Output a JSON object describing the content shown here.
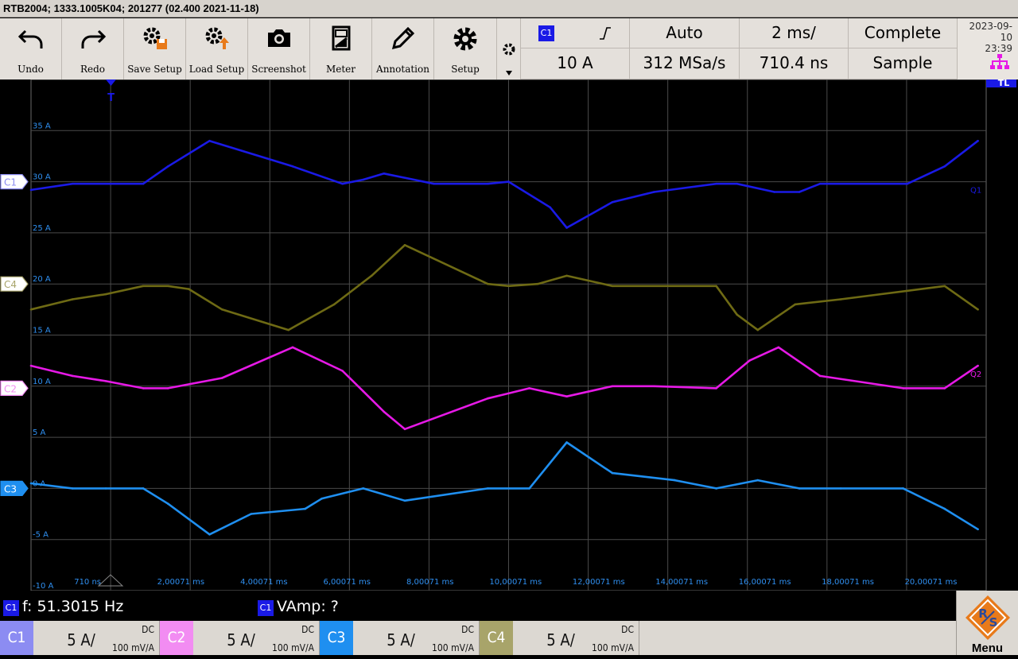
{
  "title": "RTB2004; 1333.1005K04; 201277 (02.400 2021-11-18)",
  "toolbar": {
    "undo": "Undo",
    "redo": "Redo",
    "save_setup": "Save Setup",
    "load_setup": "Load Setup",
    "screenshot": "Screenshot",
    "meter": "Meter",
    "annotation": "Annotation",
    "setup": "Setup"
  },
  "trigger": {
    "source": "C1",
    "level": "10 A",
    "mode": "Auto",
    "sample_rate": "312 MSa/s",
    "timebase": "2 ms/",
    "position": "710.4 ns",
    "acq_state": "Complete",
    "acq_mode": "Sample"
  },
  "datetime": {
    "date": "2023-09-10",
    "time": "23:39"
  },
  "trigger_marker": "T",
  "right_marker": "TL",
  "y_tick_labels": [
    "35 A",
    "30 A",
    "25 A",
    "20 A",
    "15 A",
    "10 A",
    "5 A",
    "0 A",
    "-5 A",
    "-10 A"
  ],
  "x_tick_labels": [
    "710 ns",
    "2,00071 ms",
    "4,00071 ms",
    "6,00071 ms",
    "8,00071 ms",
    "10,00071 ms",
    "12,00071 ms",
    "14,00071 ms",
    "16,00071 ms",
    "18,00071 ms",
    "20,00071 ms"
  ],
  "channels": [
    {
      "id": "C1",
      "label": "C1",
      "color": "#1a1ae6",
      "marker_color": "#8c8cf2",
      "scale": "5 A/",
      "coupling": "DC",
      "probe": "100 mV/A",
      "end_label": "Q1"
    },
    {
      "id": "C2",
      "label": "C2",
      "color": "#e619e6",
      "marker_color": "#f28cf2",
      "scale": "5 A/",
      "coupling": "DC",
      "probe": "100 mV/A",
      "end_label": "Q2"
    },
    {
      "id": "C3",
      "label": "C3",
      "color": "#1f8ff0",
      "marker_color": "#1f8ff0",
      "scale": "5 A/",
      "coupling": "DC",
      "probe": "100 mV/A",
      "end_label": ""
    },
    {
      "id": "C4",
      "label": "C4",
      "color": "#6e6a14",
      "marker_color": "#a8a46a",
      "scale": "5 A/",
      "coupling": "DC",
      "probe": "100 mV/A",
      "end_label": ""
    }
  ],
  "measurements": [
    {
      "channel": "C1",
      "text": "f: 51.3015 Hz"
    },
    {
      "channel": "C1",
      "text": "VAmp: ?"
    }
  ],
  "menu_label": "Menu",
  "chart_data": {
    "type": "line",
    "title": "",
    "xlabel": "",
    "ylabel": "",
    "x_unit": "ms",
    "y_unit": "A",
    "xlim": [
      -1.0,
      22.0
    ],
    "ylim": [
      -10,
      40
    ],
    "grid": true,
    "series": [
      {
        "name": "Q1",
        "channel": "C1",
        "x": [
          -1.0,
          0.0,
          0.8,
          1.7,
          2.3,
          3.3,
          5.3,
          6.5,
          7.0,
          7.5,
          8.7,
          10.0,
          10.5,
          11.5,
          11.9,
          13.0,
          14.0,
          15.5,
          16.0,
          16.9,
          17.5,
          18.0,
          20.1,
          21.0,
          21.8
        ],
        "y": [
          29.2,
          29.8,
          29.8,
          29.8,
          31.5,
          34.0,
          31.5,
          29.8,
          30.2,
          30.8,
          29.8,
          29.8,
          30.0,
          27.5,
          25.5,
          28.0,
          29.0,
          29.8,
          29.8,
          29.0,
          29.0,
          29.8,
          29.8,
          31.5,
          34.0
        ]
      },
      {
        "name": "C4",
        "channel": "C4",
        "x": [
          -1.0,
          0.0,
          0.8,
          1.7,
          2.3,
          2.8,
          3.6,
          5.2,
          6.3,
          7.2,
          8.0,
          10.0,
          10.5,
          11.2,
          11.9,
          13.0,
          15.5,
          16.0,
          16.5,
          17.4,
          18.5,
          21.0,
          21.8
        ],
        "y": [
          17.5,
          18.5,
          19.0,
          19.8,
          19.8,
          19.5,
          17.5,
          15.5,
          18.0,
          20.8,
          23.8,
          20.0,
          19.8,
          20.0,
          20.8,
          19.8,
          19.8,
          17.0,
          15.5,
          18.0,
          18.5,
          19.8,
          17.5
        ]
      },
      {
        "name": "Q2",
        "channel": "C2",
        "x": [
          -1.0,
          0.0,
          0.8,
          1.7,
          2.3,
          3.6,
          5.3,
          6.5,
          7.0,
          7.5,
          8.0,
          10.0,
          11.0,
          11.9,
          13.0,
          14.0,
          15.5,
          16.3,
          17.0,
          18.0,
          20.0,
          21.0,
          21.8
        ],
        "y": [
          12.0,
          11.0,
          10.5,
          9.8,
          9.8,
          10.8,
          13.8,
          11.5,
          9.5,
          7.5,
          5.8,
          8.8,
          9.8,
          9.0,
          10.0,
          10.0,
          9.8,
          12.5,
          13.8,
          11.0,
          9.8,
          9.8,
          12.0
        ]
      },
      {
        "name": "C3",
        "channel": "C3",
        "x": [
          -1.0,
          0.0,
          0.8,
          1.7,
          2.3,
          3.3,
          4.3,
          5.6,
          6.0,
          7.0,
          8.0,
          10.0,
          11.0,
          11.9,
          13.0,
          14.5,
          15.5,
          16.5,
          17.5,
          18.5,
          20.0,
          21.0,
          21.8
        ],
        "y": [
          0.5,
          0.0,
          0.0,
          0.0,
          -1.5,
          -4.5,
          -2.5,
          -2.0,
          -1.0,
          0.0,
          -1.2,
          0.0,
          0.0,
          4.5,
          1.5,
          0.8,
          0.0,
          0.8,
          0.0,
          0.0,
          0.0,
          -2.0,
          -4.0
        ]
      }
    ]
  }
}
